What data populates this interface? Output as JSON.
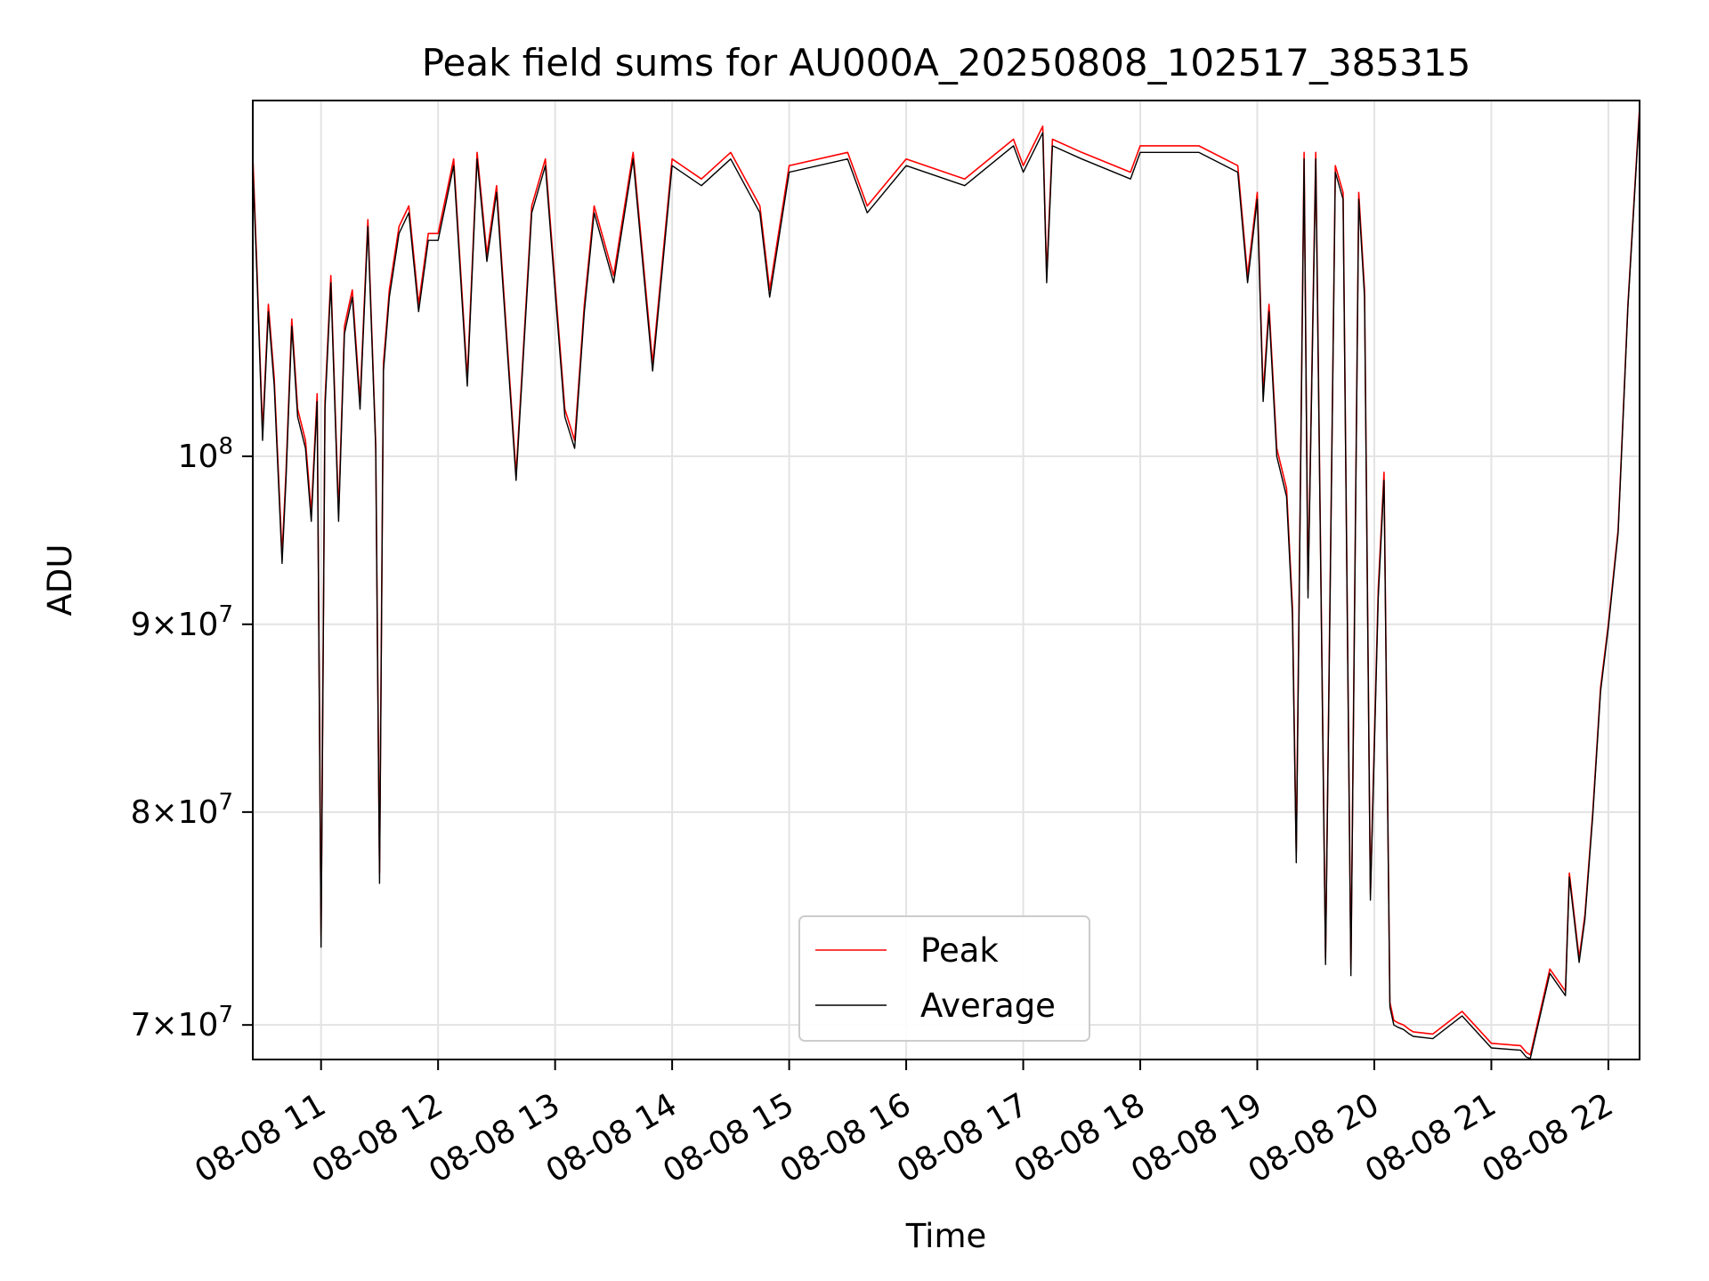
{
  "chart_data": {
    "type": "line",
    "title": "Peak field sums for AU000A_20250808_102517_385315",
    "xlabel": "Time",
    "ylabel": "ADU",
    "yscale": "log",
    "grid": true,
    "legend_position": "lower center",
    "x_range": [
      "08-08 10:25",
      "08-08 22:16"
    ],
    "ylim": [
      68500000,
      125000000
    ],
    "x_ticks": [
      "08-08 11",
      "08-08 12",
      "08-08 13",
      "08-08 14",
      "08-08 15",
      "08-08 16",
      "08-08 17",
      "08-08 18",
      "08-08 19",
      "08-08 20",
      "08-08 21",
      "08-08 22"
    ],
    "y_ticks": [
      {
        "value": 70000000,
        "mantissa": "7",
        "base": "10",
        "exp": "7"
      },
      {
        "value": 80000000,
        "mantissa": "8",
        "base": "10",
        "exp": "7"
      },
      {
        "value": 90000000,
        "mantissa": "9",
        "base": "10",
        "exp": "7"
      },
      {
        "value": 100000000,
        "mantissa": "",
        "base": "10",
        "exp": "8"
      }
    ],
    "x": [
      "08-08 10:25",
      "08-08 10:27",
      "08-08 10:30",
      "08-08 10:33",
      "08-08 10:36",
      "08-08 10:40",
      "08-08 10:42",
      "08-08 10:45",
      "08-08 10:48",
      "08-08 10:52",
      "08-08 10:55",
      "08-08 10:58",
      "08-08 11:00",
      "08-08 11:02",
      "08-08 11:05",
      "08-08 11:09",
      "08-08 11:12",
      "08-08 11:16",
      "08-08 11:20",
      "08-08 11:24",
      "08-08 11:28",
      "08-08 11:30",
      "08-08 11:32",
      "08-08 11:35",
      "08-08 11:40",
      "08-08 11:45",
      "08-08 11:50",
      "08-08 11:55",
      "08-08 12:00",
      "08-08 12:08",
      "08-08 12:15",
      "08-08 12:20",
      "08-08 12:25",
      "08-08 12:30",
      "08-08 12:40",
      "08-08 12:48",
      "08-08 12:55",
      "08-08 13:05",
      "08-08 13:10",
      "08-08 13:15",
      "08-08 13:20",
      "08-08 13:30",
      "08-08 13:40",
      "08-08 13:50",
      "08-08 14:00",
      "08-08 14:15",
      "08-08 14:30",
      "08-08 14:45",
      "08-08 14:50",
      "08-08 15:00",
      "08-08 15:30",
      "08-08 15:40",
      "08-08 16:00",
      "08-08 16:30",
      "08-08 16:55",
      "08-08 17:00",
      "08-08 17:10",
      "08-08 17:12",
      "08-08 17:15",
      "08-08 17:30",
      "08-08 17:55",
      "08-08 18:00",
      "08-08 18:30",
      "08-08 18:50",
      "08-08 18:55",
      "08-08 19:00",
      "08-08 19:03",
      "08-08 19:06",
      "08-08 19:10",
      "08-08 19:15",
      "08-08 19:18",
      "08-08 19:20",
      "08-08 19:24",
      "08-08 19:26",
      "08-08 19:30",
      "08-08 19:35",
      "08-08 19:40",
      "08-08 19:44",
      "08-08 19:48",
      "08-08 19:52",
      "08-08 19:55",
      "08-08 19:58",
      "08-08 20:02",
      "08-08 20:05",
      "08-08 20:08",
      "08-08 20:10",
      "08-08 20:12",
      "08-08 20:15",
      "08-08 20:18",
      "08-08 20:20",
      "08-08 20:30",
      "08-08 20:45",
      "08-08 21:00",
      "08-08 21:15",
      "08-08 21:18",
      "08-08 21:20",
      "08-08 21:30",
      "08-08 21:38",
      "08-08 21:40",
      "08-08 21:45",
      "08-08 21:48",
      "08-08 21:52",
      "08-08 21:56",
      "08-08 22:00",
      "08-08 22:05",
      "08-08 22:10",
      "08-08 22:16"
    ],
    "series": [
      {
        "name": "Peak",
        "color": "#ff0000",
        "values": [
          120800000,
          113000000,
          101500000,
          110000000,
          105000000,
          94000000,
          99000000,
          109000000,
          103000000,
          101000000,
          96500000,
          104000000,
          74000000,
          103500000,
          112000000,
          96500000,
          108500000,
          111000000,
          103500000,
          116000000,
          100800000,
          77000000,
          106000000,
          111000000,
          115500000,
          117000000,
          110000000,
          115000000,
          115000000,
          120500000,
          105000000,
          121000000,
          113500000,
          118500000,
          98900000,
          117000000,
          120500000,
          103000000,
          101000000,
          110000000,
          117000000,
          112000000,
          121000000,
          106000000,
          120500000,
          119000000,
          121000000,
          117000000,
          111000000,
          120000000,
          121000000,
          117000000,
          120500000,
          119000000,
          122000000,
          120000000,
          123000000,
          112000000,
          122000000,
          121000000,
          119500000,
          121500000,
          121500000,
          120000000,
          112000000,
          118000000,
          104000000,
          110000000,
          100500000,
          98000000,
          91000000,
          78000000,
          121000000,
          92000000,
          121000000,
          73000000,
          120000000,
          118000000,
          72500000,
          118000000,
          111000000,
          76000000,
          92000000,
          99000000,
          71000000,
          70200000,
          70100000,
          70000000,
          69800000,
          69700000,
          69600000,
          70600000,
          69200000,
          69100000,
          68800000,
          68700000,
          72500000,
          71500000,
          77000000,
          73000000,
          75000000,
          80000000,
          86500000,
          90000000,
          95500000,
          110000000,
          124500000
        ]
      },
      {
        "name": "Average",
        "color": "#000000",
        "values": [
          120000000,
          112500000,
          101000000,
          109500000,
          104500000,
          93500000,
          98500000,
          108500000,
          102500000,
          100500000,
          96000000,
          103500000,
          73500000,
          103000000,
          111500000,
          96000000,
          108000000,
          110500000,
          103000000,
          115500000,
          100500000,
          76500000,
          105500000,
          110500000,
          115000000,
          116500000,
          109500000,
          114500000,
          114500000,
          120000000,
          104500000,
          120500000,
          113000000,
          118000000,
          98500000,
          116500000,
          120000000,
          102500000,
          100500000,
          109500000,
          116500000,
          111500000,
          120500000,
          105500000,
          120000000,
          118500000,
          120500000,
          116500000,
          110500000,
          119500000,
          120500000,
          116500000,
          120000000,
          118500000,
          121500000,
          119500000,
          122500000,
          111500000,
          121500000,
          120500000,
          119000000,
          121000000,
          121000000,
          119500000,
          111500000,
          117500000,
          103500000,
          109500000,
          100000000,
          97500000,
          90500000,
          77500000,
          120500000,
          91500000,
          120500000,
          72700000,
          119500000,
          117500000,
          72200000,
          117500000,
          110500000,
          75700000,
          91500000,
          98500000,
          70800000,
          70000000,
          69900000,
          69800000,
          69600000,
          69500000,
          69400000,
          70400000,
          69000000,
          68900000,
          68600000,
          68550000,
          72300000,
          71300000,
          76800000,
          72800000,
          74800000,
          79800000,
          86300000,
          89800000,
          95300000,
          109800000,
          124200000
        ]
      }
    ]
  }
}
